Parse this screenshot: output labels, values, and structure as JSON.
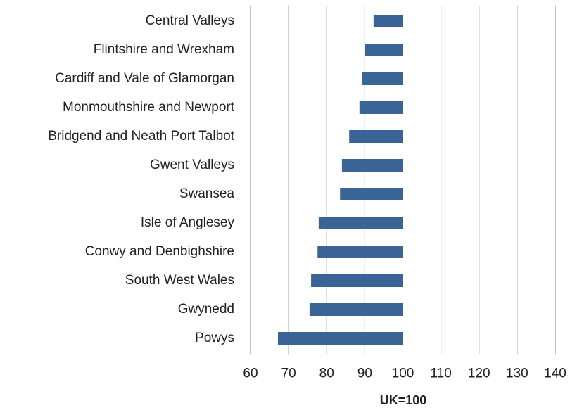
{
  "chart_data": {
    "type": "hbar",
    "categories": [
      "Central Valleys",
      "Flintshire and Wrexham",
      "Cardiff and Vale of Glamorgan",
      "Monmouthshire and Newport",
      "Bridgend and Neath Port Talbot",
      "Gwent Valleys",
      "Swansea",
      "Isle of Anglesey",
      "Conwy and Denbighshire",
      "South West Wales",
      "Gwynedd",
      "Powys"
    ],
    "values": [
      92.3,
      90.1,
      89.2,
      88.6,
      85.9,
      84,
      83.5,
      77.9,
      77.6,
      75.9,
      75.5,
      67.2
    ],
    "baseline": 100,
    "color": "#3b6496",
    "xlabel": "UK=100",
    "xlim": [
      60,
      140
    ],
    "xticks": [
      60,
      70,
      80,
      90,
      100,
      110,
      120,
      130,
      140
    ],
    "grid": true
  }
}
